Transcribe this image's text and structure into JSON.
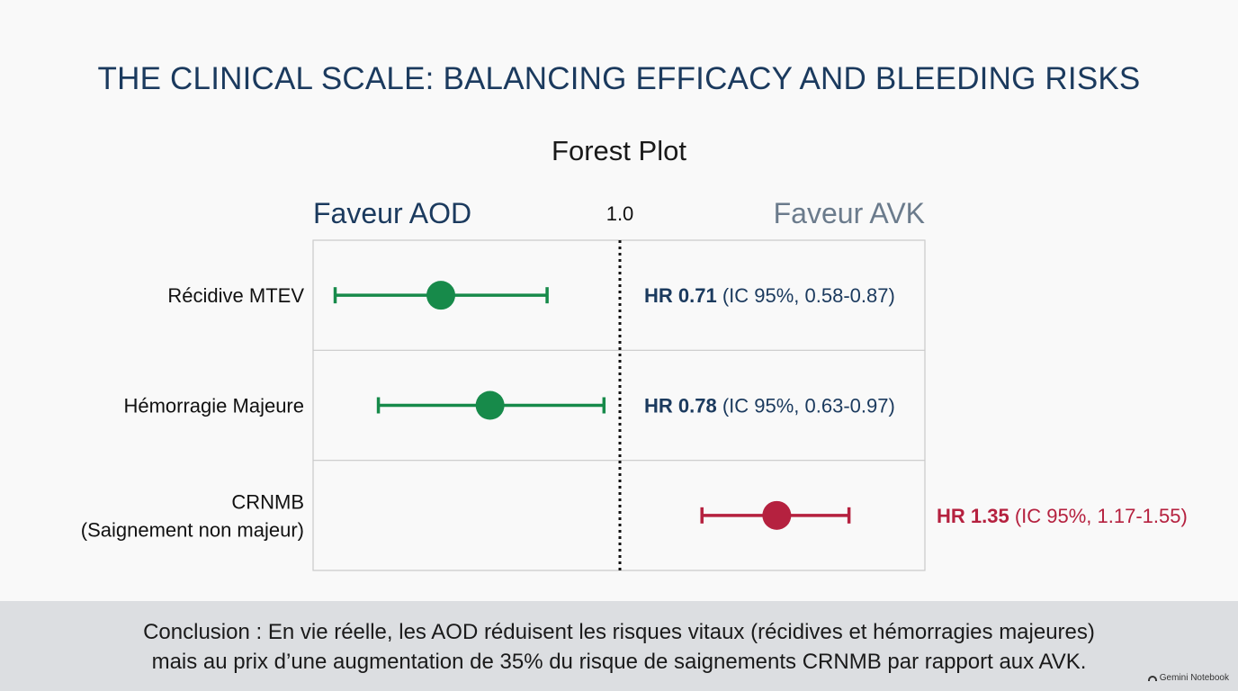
{
  "header": {
    "title": "THE CLINICAL SCALE: BALANCING EFFICACY AND BLEEDING RISKS",
    "subtitle": "Forest Plot"
  },
  "colors": {
    "title": "#1b3a5e",
    "favor_left": "#1b3a5e",
    "favor_right": "#6b7b8c",
    "green": "#178a4a",
    "red": "#b5213f"
  },
  "chart_data": {
    "type": "forest",
    "reference_line": 1.0,
    "reference_label": "1.0",
    "left_label": "Faveur AOD",
    "right_label": "Faveur AVK",
    "rows": [
      {
        "label_lines": [
          "Récidive MTEV"
        ],
        "hr": 0.71,
        "ci_low": 0.58,
        "ci_high": 0.87,
        "hr_label": "HR 0.71",
        "ci_label": " (IC 95%, 0.58-0.87)",
        "color": "#178a4a",
        "text_color": "#1b3a5e"
      },
      {
        "label_lines": [
          "Hémorragie Majeure"
        ],
        "hr": 0.78,
        "ci_low": 0.63,
        "ci_high": 0.97,
        "hr_label": "HR 0.78",
        "ci_label": " (IC 95%, 0.63-0.97)",
        "color": "#178a4a",
        "text_color": "#1b3a5e"
      },
      {
        "label_lines": [
          "CRNMB",
          "(Saignement non majeur)"
        ],
        "hr": 1.35,
        "ci_low": 1.17,
        "ci_high": 1.55,
        "hr_label": "HR 1.35",
        "ci_label": " (IC 95%, 1.17-1.55)",
        "color": "#b5213f",
        "text_color": "#b5213f"
      }
    ]
  },
  "footer": {
    "conclusion_line1": "Conclusion : En vie réelle, les AOD réduisent les risques vitaux (récidives et hémorragies majeures)",
    "conclusion_line2": "mais au prix d’une augmentation de 35% du risque de saignements CRNMB par rapport aux AVK.",
    "watermark": "Gemini Notebook"
  }
}
